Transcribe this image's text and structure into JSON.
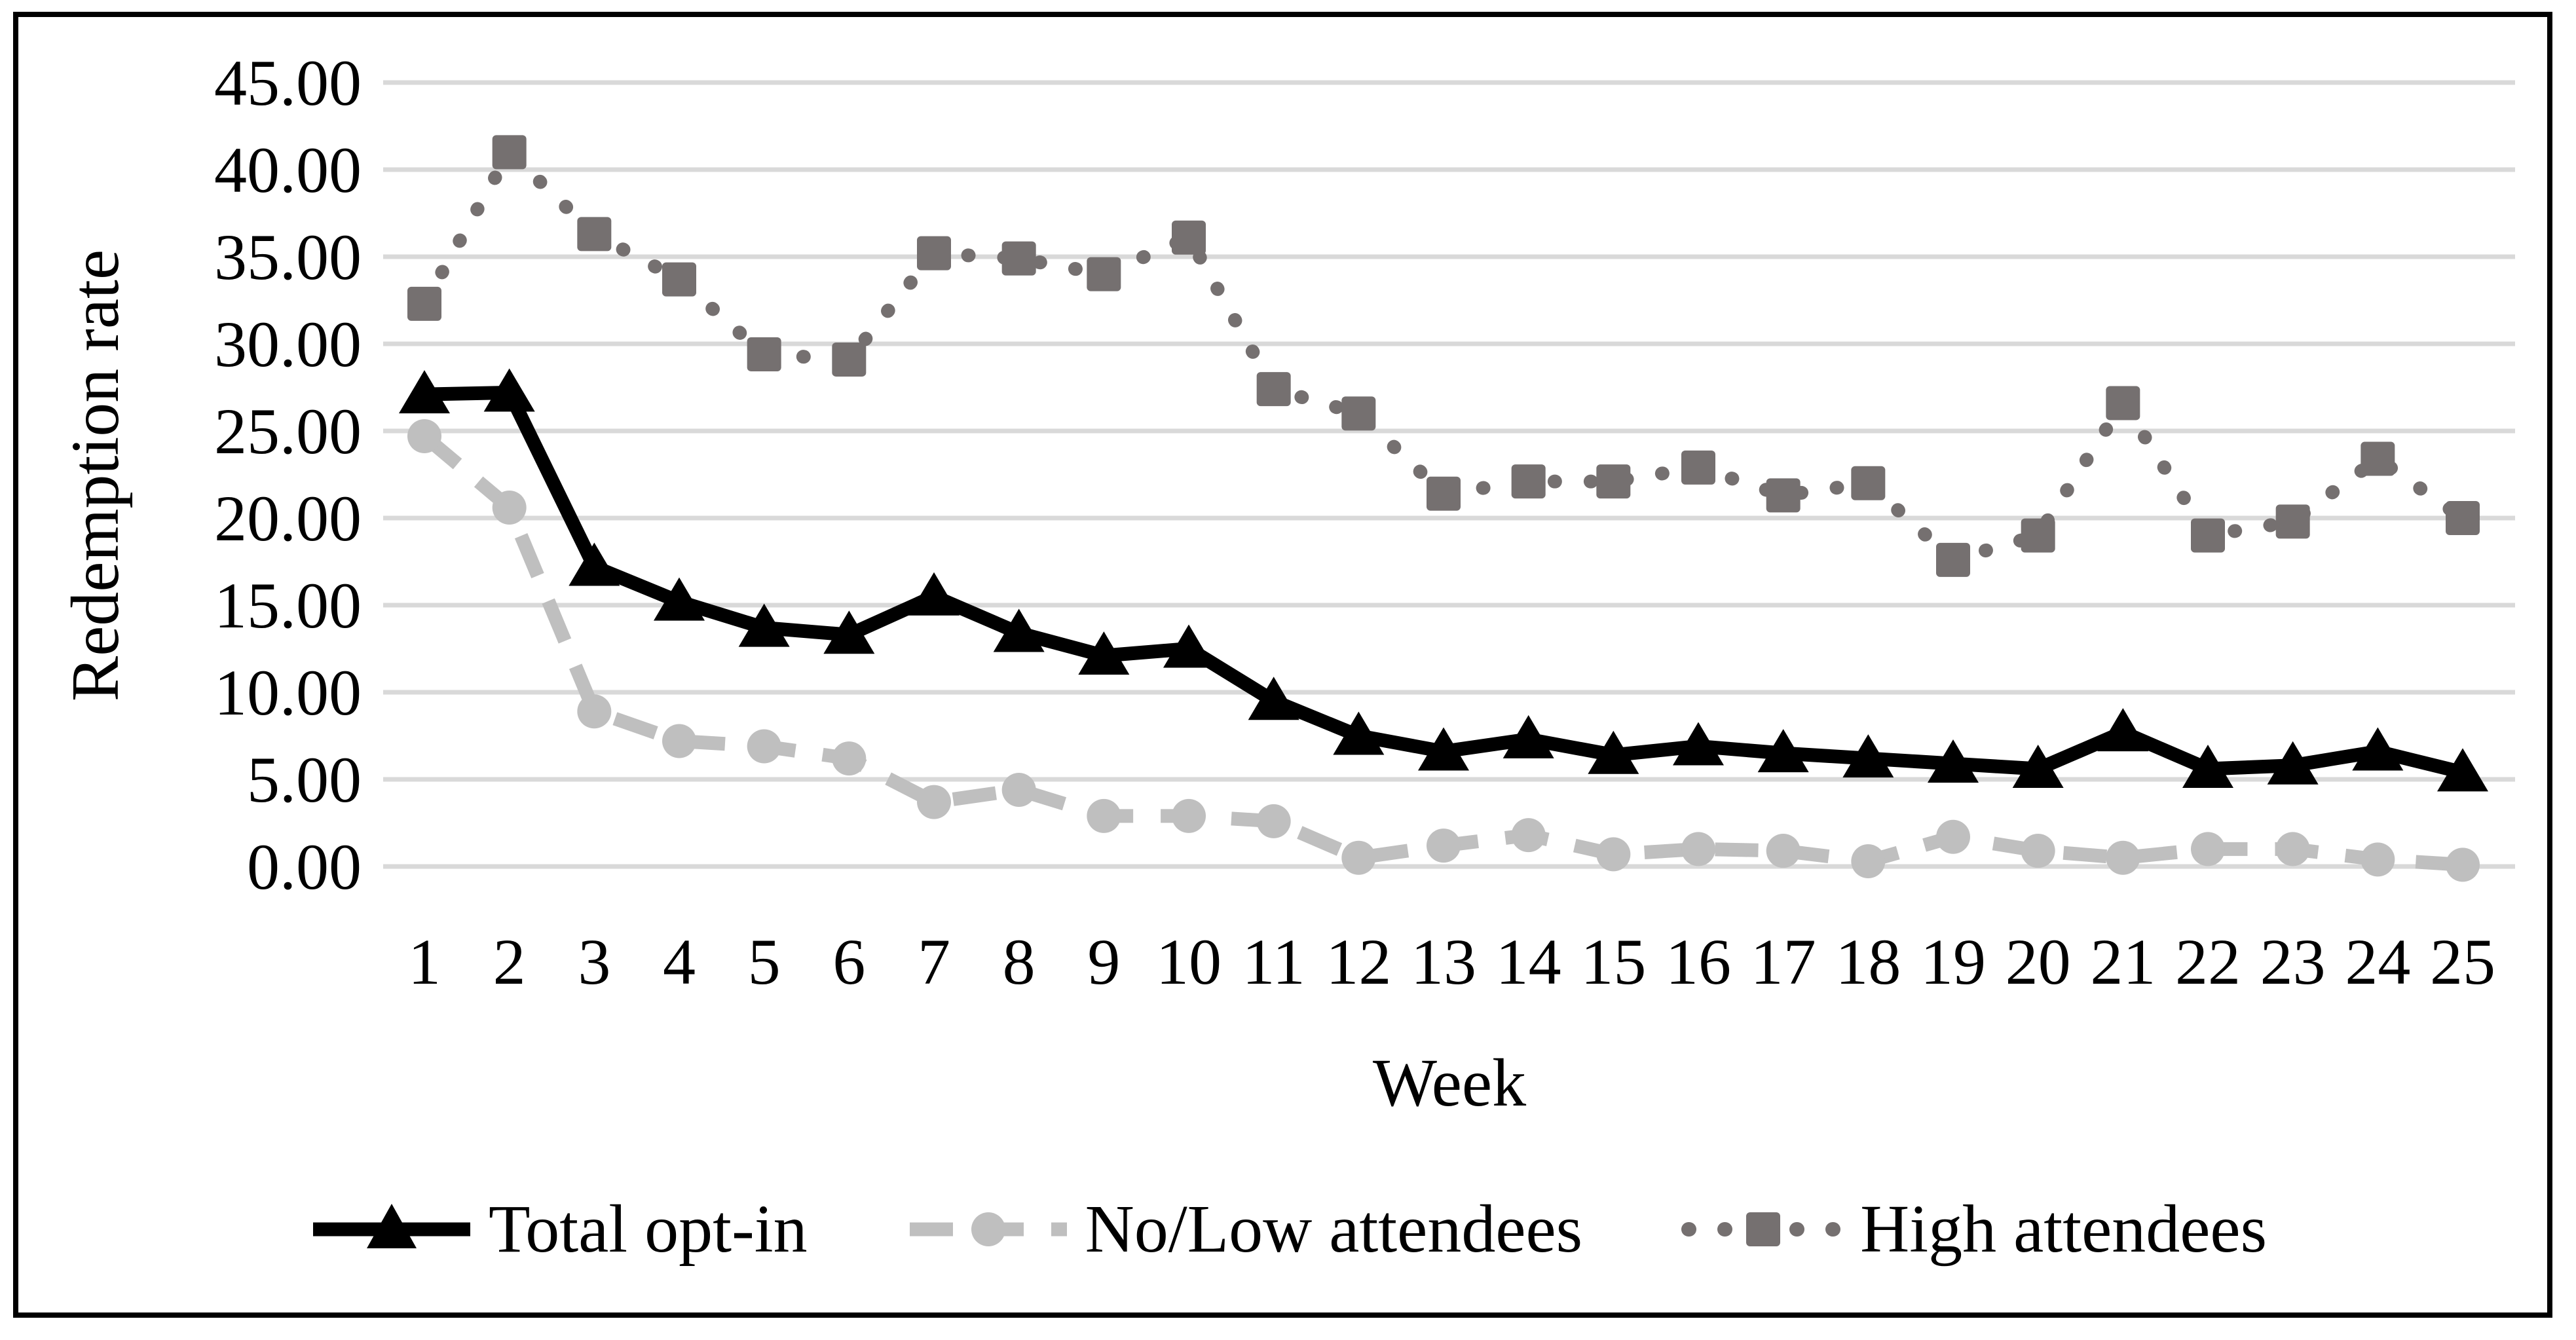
{
  "figure": {
    "background_color": "#ffffff",
    "border_color": "#000000"
  },
  "chart_data": {
    "type": "line",
    "title": "",
    "xlabel": "Week",
    "ylabel": "Redemption rate",
    "x": [
      1,
      2,
      3,
      4,
      5,
      6,
      7,
      8,
      9,
      10,
      11,
      12,
      13,
      14,
      15,
      16,
      17,
      18,
      19,
      20,
      21,
      22,
      23,
      24,
      25
    ],
    "ylim": [
      0,
      45
    ],
    "ytick_values": [
      0,
      5,
      10,
      15,
      20,
      25,
      30,
      35,
      40,
      45
    ],
    "ytick_labels": [
      "0.00",
      "5.00",
      "10.00",
      "15.00",
      "20.00",
      "25.00",
      "30.00",
      "35.00",
      "40.00",
      "45.00"
    ],
    "ytick_decimals": 2,
    "grid": "horizontal",
    "gridline_color": "#d9d9d9",
    "legend_position": "bottom",
    "series": [
      {
        "name": "Total opt-in",
        "color": "#000000",
        "marker": "triangle",
        "line_style": "solid",
        "values": [
          27.1,
          27.2,
          17.2,
          15.2,
          13.7,
          13.3,
          15.5,
          13.4,
          12.1,
          12.5,
          9.5,
          7.5,
          6.6,
          7.3,
          6.4,
          6.9,
          6.5,
          6.2,
          5.9,
          5.6,
          7.7,
          5.6,
          5.8,
          6.6,
          5.4
        ]
      },
      {
        "name": "No/Low attendees",
        "color": "#bfbfbf",
        "marker": "circle",
        "line_style": "dashed",
        "values": [
          24.7,
          20.6,
          8.9,
          7.2,
          6.9,
          6.2,
          3.7,
          4.4,
          2.9,
          2.9,
          2.6,
          0.5,
          1.2,
          1.8,
          0.7,
          1.0,
          0.9,
          0.3,
          1.7,
          0.9,
          0.5,
          1.0,
          1.0,
          0.4,
          0.1
        ]
      },
      {
        "name": "High attendees",
        "color": "#757070",
        "marker": "square",
        "line_style": "dotted",
        "values": [
          32.3,
          41.0,
          36.3,
          33.7,
          29.4,
          29.1,
          35.2,
          34.9,
          34.0,
          36.1,
          27.4,
          26.0,
          21.4,
          22.1,
          22.1,
          22.9,
          21.3,
          22.0,
          17.6,
          19.0,
          26.6,
          19.0,
          19.8,
          23.4,
          20.0
        ]
      }
    ]
  }
}
